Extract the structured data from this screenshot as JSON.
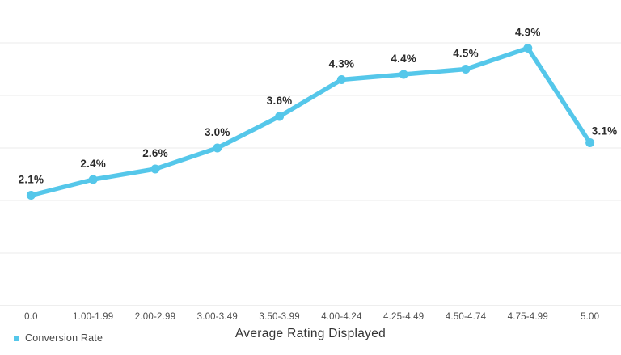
{
  "chart_data": {
    "type": "line",
    "categories": [
      "0.0",
      "1.00-1.99",
      "2.00-2.99",
      "3.00-3.49",
      "3.50-3.99",
      "4.00-4.24",
      "4.25-4.49",
      "4.50-4.74",
      "4.75-4.99",
      "5.00"
    ],
    "series": [
      {
        "name": "Conversion Rate",
        "values": [
          2.1,
          2.4,
          2.6,
          3.0,
          3.6,
          4.3,
          4.4,
          4.5,
          4.9,
          3.1
        ],
        "labels": [
          "2.1%",
          "2.4%",
          "2.6%",
          "3.0%",
          "3.6%",
          "4.3%",
          "4.4%",
          "4.5%",
          "4.9%",
          "3.1%"
        ]
      }
    ],
    "xlabel": "Average Rating Displayed",
    "ylabel": "",
    "ylim": [
      0,
      5.8
    ],
    "y_gridlines": [
      0,
      1,
      2,
      3,
      4,
      5
    ],
    "grid": "horizontal",
    "legend_position": "bottom-left",
    "colors": {
      "line": "#55C7EA",
      "marker": "#55C7EA",
      "point_label": "#2b2b2b",
      "tick_label": "#4d4d4d",
      "gridline": "#ebebeb",
      "axis_line": "#dcdcdc",
      "background": "#ffffff"
    }
  }
}
